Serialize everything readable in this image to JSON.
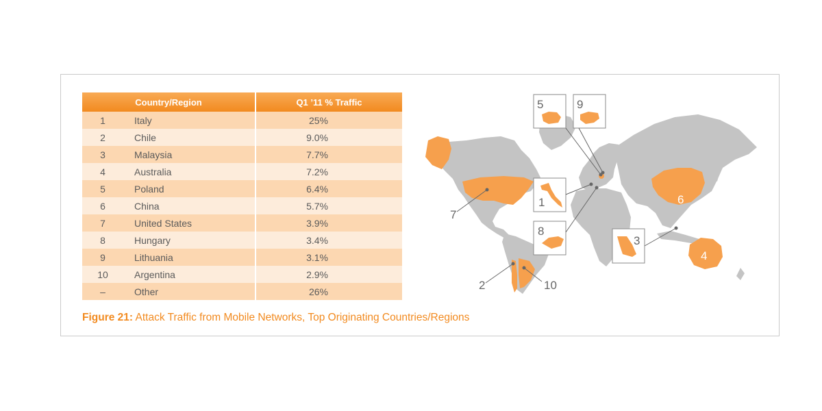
{
  "table": {
    "headers": [
      "Country/Region",
      "Q1 ’11 % Traffic"
    ],
    "rows": [
      {
        "rank": "1",
        "country": "Italy",
        "traffic": "25%"
      },
      {
        "rank": "2",
        "country": "Chile",
        "traffic": "9.0%"
      },
      {
        "rank": "3",
        "country": "Malaysia",
        "traffic": "7.7%"
      },
      {
        "rank": "4",
        "country": "Australia",
        "traffic": "7.2%"
      },
      {
        "rank": "5",
        "country": "Poland",
        "traffic": "6.4%"
      },
      {
        "rank": "6",
        "country": "China",
        "traffic": "5.7%"
      },
      {
        "rank": "7",
        "country": "United States",
        "traffic": "3.9%"
      },
      {
        "rank": "8",
        "country": "Hungary",
        "traffic": "3.4%"
      },
      {
        "rank": "9",
        "country": "Lithuania",
        "traffic": "3.1%"
      },
      {
        "rank": "10",
        "country": "Argentina",
        "traffic": "2.9%"
      },
      {
        "rank": "–",
        "country": "Other",
        "traffic": "26%"
      }
    ]
  },
  "caption": {
    "label": "Figure 21:",
    "text": " Attack Traffic from Mobile Networks, Top Originating Countries/Regions"
  },
  "map": {
    "callouts": {
      "italy": "1",
      "chile": "2",
      "malaysia": "3",
      "australia": "4",
      "poland": "5",
      "china": "6",
      "united_states": "7",
      "hungary": "8",
      "lithuania": "9",
      "argentina": "10"
    },
    "colors": {
      "land": "#c4c4c4",
      "highlight": "#f6a04d",
      "accent": "#f28a1f",
      "leader": "#666666"
    }
  }
}
